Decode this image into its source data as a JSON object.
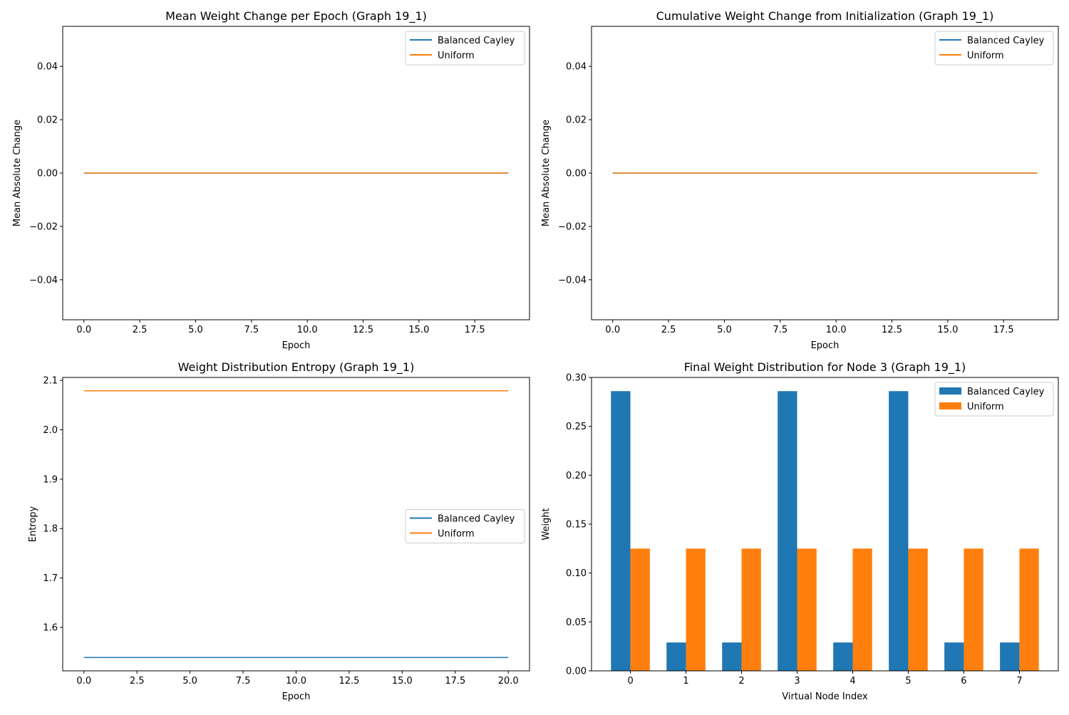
{
  "colors": {
    "balanced_cayley": "#1f77b4",
    "uniform": "#ff7f0e",
    "axis": "#000000",
    "legend_border": "#cccccc"
  },
  "chart_data": [
    {
      "type": "line",
      "title": "Mean Weight Change per Epoch (Graph 19_1)",
      "xlabel": "Epoch",
      "ylabel": "Mean Absolute Change",
      "xlim": [
        -0.95,
        19.95
      ],
      "ylim": [
        -0.055,
        0.055
      ],
      "xticks": [
        0,
        2.5,
        5,
        7.5,
        10,
        12.5,
        15,
        17.5
      ],
      "xtick_labels": [
        "0.0",
        "2.5",
        "5.0",
        "7.5",
        "10.0",
        "12.5",
        "15.0",
        "17.5"
      ],
      "yticks": [
        -0.04,
        -0.02,
        0,
        0.02,
        0.04
      ],
      "ytick_labels": [
        "−0.04",
        "−0.02",
        "0.00",
        "0.02",
        "0.04"
      ],
      "legend_position": "top-right",
      "series": [
        {
          "name": "Balanced Cayley",
          "color": "#1f77b4",
          "x_start": 0,
          "x_end": 19,
          "y": 0
        },
        {
          "name": "Uniform",
          "color": "#ff7f0e",
          "x_start": 0,
          "x_end": 19,
          "y": 0
        }
      ]
    },
    {
      "type": "line",
      "title": "Cumulative Weight Change from Initialization (Graph 19_1)",
      "xlabel": "Epoch",
      "ylabel": "Mean Absolute Change",
      "xlim": [
        -0.95,
        19.95
      ],
      "ylim": [
        -0.055,
        0.055
      ],
      "xticks": [
        0,
        2.5,
        5,
        7.5,
        10,
        12.5,
        15,
        17.5
      ],
      "xtick_labels": [
        "0.0",
        "2.5",
        "5.0",
        "7.5",
        "10.0",
        "12.5",
        "15.0",
        "17.5"
      ],
      "yticks": [
        -0.04,
        -0.02,
        0,
        0.02,
        0.04
      ],
      "ytick_labels": [
        "−0.04",
        "−0.02",
        "0.00",
        "0.02",
        "0.04"
      ],
      "legend_position": "top-right",
      "series": [
        {
          "name": "Balanced Cayley",
          "color": "#1f77b4",
          "x_start": 0,
          "x_end": 19,
          "y": 0
        },
        {
          "name": "Uniform",
          "color": "#ff7f0e",
          "x_start": 0,
          "x_end": 19,
          "y": 0
        }
      ]
    },
    {
      "type": "line",
      "title": "Weight Distribution Entropy (Graph 19_1)",
      "xlabel": "Epoch",
      "ylabel": "Entropy",
      "xlim": [
        -1.0,
        21.0
      ],
      "ylim": [
        1.512,
        2.106
      ],
      "xticks": [
        0,
        2.5,
        5,
        7.5,
        10,
        12.5,
        15,
        17.5,
        20
      ],
      "xtick_labels": [
        "0.0",
        "2.5",
        "5.0",
        "7.5",
        "10.0",
        "12.5",
        "15.0",
        "17.5",
        "20.0"
      ],
      "yticks": [
        1.6,
        1.7,
        1.8,
        1.9,
        2.0,
        2.1
      ],
      "ytick_labels": [
        "1.6",
        "1.7",
        "1.8",
        "1.9",
        "2.0",
        "2.1"
      ],
      "legend_position": "center-right",
      "series": [
        {
          "name": "Balanced Cayley",
          "color": "#1f77b4",
          "x_start": 0,
          "x_end": 20,
          "y": 1.539
        },
        {
          "name": "Uniform",
          "color": "#ff7f0e",
          "x_start": 0,
          "x_end": 20,
          "y": 2.079
        }
      ]
    },
    {
      "type": "bar",
      "title": "Final Weight Distribution for Node 3 (Graph 19_1)",
      "xlabel": "Virtual Node Index",
      "ylabel": "Weight",
      "categories": [
        "0",
        "1",
        "2",
        "3",
        "4",
        "5",
        "6",
        "7"
      ],
      "xlim": [
        -0.7,
        7.7
      ],
      "ylim": [
        0,
        0.3
      ],
      "bar_width": 0.35,
      "yticks": [
        0,
        0.05,
        0.1,
        0.15,
        0.2,
        0.25,
        0.3
      ],
      "ytick_labels": [
        "0.00",
        "0.05",
        "0.10",
        "0.15",
        "0.20",
        "0.25",
        "0.30"
      ],
      "legend_position": "top-right",
      "series": [
        {
          "name": "Balanced Cayley",
          "color": "#1f77b4",
          "values": [
            0.286,
            0.029,
            0.029,
            0.286,
            0.029,
            0.286,
            0.029,
            0.029
          ]
        },
        {
          "name": "Uniform",
          "color": "#ff7f0e",
          "values": [
            0.125,
            0.125,
            0.125,
            0.125,
            0.125,
            0.125,
            0.125,
            0.125
          ]
        }
      ]
    }
  ]
}
